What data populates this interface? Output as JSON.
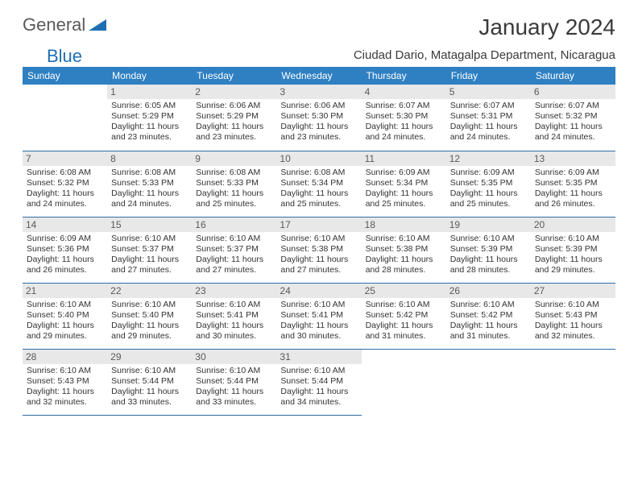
{
  "logo": {
    "text1": "General",
    "text2": "Blue"
  },
  "title": "January 2024",
  "location": "Ciudad Dario, Matagalpa Department, Nicaragua",
  "colors": {
    "header_bg": "#2f80c3",
    "header_text": "#ffffff",
    "daynum_bg": "#e8e8e8",
    "row_border": "#2f6fa8",
    "logo_gray": "#5a5a5a",
    "logo_blue": "#1f6fb2"
  },
  "daysOfWeek": [
    "Sunday",
    "Monday",
    "Tuesday",
    "Wednesday",
    "Thursday",
    "Friday",
    "Saturday"
  ],
  "startOffset": 1,
  "daysInMonth": 31,
  "cells": {
    "1": {
      "sunrise": "6:05 AM",
      "sunset": "5:29 PM",
      "daylight": "11 hours and 23 minutes."
    },
    "2": {
      "sunrise": "6:06 AM",
      "sunset": "5:29 PM",
      "daylight": "11 hours and 23 minutes."
    },
    "3": {
      "sunrise": "6:06 AM",
      "sunset": "5:30 PM",
      "daylight": "11 hours and 23 minutes."
    },
    "4": {
      "sunrise": "6:07 AM",
      "sunset": "5:30 PM",
      "daylight": "11 hours and 24 minutes."
    },
    "5": {
      "sunrise": "6:07 AM",
      "sunset": "5:31 PM",
      "daylight": "11 hours and 24 minutes."
    },
    "6": {
      "sunrise": "6:07 AM",
      "sunset": "5:32 PM",
      "daylight": "11 hours and 24 minutes."
    },
    "7": {
      "sunrise": "6:08 AM",
      "sunset": "5:32 PM",
      "daylight": "11 hours and 24 minutes."
    },
    "8": {
      "sunrise": "6:08 AM",
      "sunset": "5:33 PM",
      "daylight": "11 hours and 24 minutes."
    },
    "9": {
      "sunrise": "6:08 AM",
      "sunset": "5:33 PM",
      "daylight": "11 hours and 25 minutes."
    },
    "10": {
      "sunrise": "6:08 AM",
      "sunset": "5:34 PM",
      "daylight": "11 hours and 25 minutes."
    },
    "11": {
      "sunrise": "6:09 AM",
      "sunset": "5:34 PM",
      "daylight": "11 hours and 25 minutes."
    },
    "12": {
      "sunrise": "6:09 AM",
      "sunset": "5:35 PM",
      "daylight": "11 hours and 25 minutes."
    },
    "13": {
      "sunrise": "6:09 AM",
      "sunset": "5:35 PM",
      "daylight": "11 hours and 26 minutes."
    },
    "14": {
      "sunrise": "6:09 AM",
      "sunset": "5:36 PM",
      "daylight": "11 hours and 26 minutes."
    },
    "15": {
      "sunrise": "6:10 AM",
      "sunset": "5:37 PM",
      "daylight": "11 hours and 27 minutes."
    },
    "16": {
      "sunrise": "6:10 AM",
      "sunset": "5:37 PM",
      "daylight": "11 hours and 27 minutes."
    },
    "17": {
      "sunrise": "6:10 AM",
      "sunset": "5:38 PM",
      "daylight": "11 hours and 27 minutes."
    },
    "18": {
      "sunrise": "6:10 AM",
      "sunset": "5:38 PM",
      "daylight": "11 hours and 28 minutes."
    },
    "19": {
      "sunrise": "6:10 AM",
      "sunset": "5:39 PM",
      "daylight": "11 hours and 28 minutes."
    },
    "20": {
      "sunrise": "6:10 AM",
      "sunset": "5:39 PM",
      "daylight": "11 hours and 29 minutes."
    },
    "21": {
      "sunrise": "6:10 AM",
      "sunset": "5:40 PM",
      "daylight": "11 hours and 29 minutes."
    },
    "22": {
      "sunrise": "6:10 AM",
      "sunset": "5:40 PM",
      "daylight": "11 hours and 29 minutes."
    },
    "23": {
      "sunrise": "6:10 AM",
      "sunset": "5:41 PM",
      "daylight": "11 hours and 30 minutes."
    },
    "24": {
      "sunrise": "6:10 AM",
      "sunset": "5:41 PM",
      "daylight": "11 hours and 30 minutes."
    },
    "25": {
      "sunrise": "6:10 AM",
      "sunset": "5:42 PM",
      "daylight": "11 hours and 31 minutes."
    },
    "26": {
      "sunrise": "6:10 AM",
      "sunset": "5:42 PM",
      "daylight": "11 hours and 31 minutes."
    },
    "27": {
      "sunrise": "6:10 AM",
      "sunset": "5:43 PM",
      "daylight": "11 hours and 32 minutes."
    },
    "28": {
      "sunrise": "6:10 AM",
      "sunset": "5:43 PM",
      "daylight": "11 hours and 32 minutes."
    },
    "29": {
      "sunrise": "6:10 AM",
      "sunset": "5:44 PM",
      "daylight": "11 hours and 33 minutes."
    },
    "30": {
      "sunrise": "6:10 AM",
      "sunset": "5:44 PM",
      "daylight": "11 hours and 33 minutes."
    },
    "31": {
      "sunrise": "6:10 AM",
      "sunset": "5:44 PM",
      "daylight": "11 hours and 34 minutes."
    }
  },
  "labels": {
    "sunrise": "Sunrise:",
    "sunset": "Sunset:",
    "daylight": "Daylight:"
  }
}
